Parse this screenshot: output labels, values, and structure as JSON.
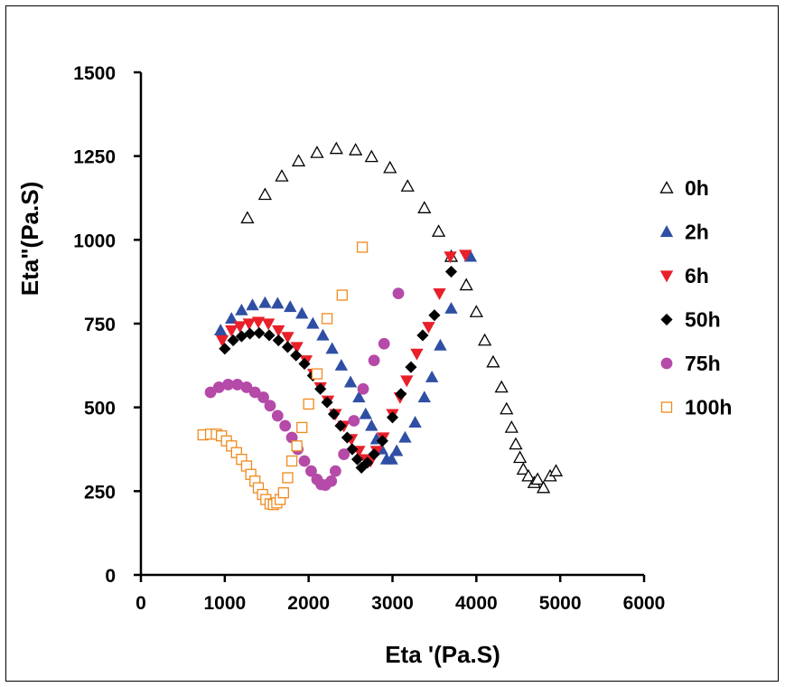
{
  "chart_data": {
    "type": "scatter",
    "xlabel": "Eta '(Pa.S)",
    "ylabel": "Eta\"(Pa.S)",
    "xlim": [
      0,
      6000
    ],
    "ylim": [
      0,
      1500
    ],
    "xticks": [
      0,
      1000,
      2000,
      3000,
      4000,
      5000,
      6000
    ],
    "yticks": [
      0,
      250,
      500,
      750,
      1000,
      1250,
      1500
    ],
    "grid": false,
    "legend_position": "right",
    "series": [
      {
        "name": "0h",
        "marker": "triangle-open",
        "color": "#000000",
        "points": [
          [
            1270,
            1065
          ],
          [
            1480,
            1135
          ],
          [
            1680,
            1190
          ],
          [
            1880,
            1235
          ],
          [
            2100,
            1260
          ],
          [
            2330,
            1272
          ],
          [
            2560,
            1268
          ],
          [
            2750,
            1248
          ],
          [
            2970,
            1215
          ],
          [
            3180,
            1160
          ],
          [
            3380,
            1095
          ],
          [
            3550,
            1025
          ],
          [
            3700,
            950
          ],
          [
            3880,
            865
          ],
          [
            4000,
            785
          ],
          [
            4100,
            700
          ],
          [
            4200,
            635
          ],
          [
            4300,
            560
          ],
          [
            4360,
            495
          ],
          [
            4420,
            440
          ],
          [
            4470,
            390
          ],
          [
            4520,
            350
          ],
          [
            4560,
            315
          ],
          [
            4620,
            295
          ],
          [
            4690,
            275
          ],
          [
            4730,
            285
          ],
          [
            4800,
            260
          ],
          [
            4880,
            295
          ],
          [
            4950,
            310
          ]
        ]
      },
      {
        "name": "2h",
        "marker": "triangle-filled",
        "color": "#2e4fa3",
        "points": [
          [
            950,
            730
          ],
          [
            1080,
            765
          ],
          [
            1200,
            790
          ],
          [
            1330,
            805
          ],
          [
            1480,
            812
          ],
          [
            1630,
            810
          ],
          [
            1780,
            800
          ],
          [
            1920,
            780
          ],
          [
            2050,
            750
          ],
          [
            2170,
            715
          ],
          [
            2280,
            675
          ],
          [
            2390,
            625
          ],
          [
            2500,
            575
          ],
          [
            2600,
            530
          ],
          [
            2680,
            480
          ],
          [
            2750,
            445
          ],
          [
            2810,
            405
          ],
          [
            2870,
            375
          ],
          [
            2930,
            345
          ],
          [
            2990,
            345
          ],
          [
            3050,
            370
          ],
          [
            3150,
            410
          ],
          [
            3270,
            455
          ],
          [
            3380,
            530
          ],
          [
            3470,
            590
          ],
          [
            3570,
            685
          ],
          [
            3700,
            795
          ],
          [
            3930,
            950
          ]
        ]
      },
      {
        "name": "6h",
        "marker": "triangle-down-filled",
        "color": "#e8202a",
        "points": [
          [
            970,
            700
          ],
          [
            1080,
            730
          ],
          [
            1180,
            742
          ],
          [
            1290,
            750
          ],
          [
            1400,
            755
          ],
          [
            1520,
            750
          ],
          [
            1640,
            730
          ],
          [
            1750,
            710
          ],
          [
            1860,
            680
          ],
          [
            1970,
            640
          ],
          [
            2060,
            600
          ],
          [
            2140,
            560
          ],
          [
            2230,
            520
          ],
          [
            2320,
            480
          ],
          [
            2420,
            445
          ],
          [
            2510,
            405
          ],
          [
            2600,
            370
          ],
          [
            2680,
            345
          ],
          [
            2740,
            340
          ],
          [
            2810,
            370
          ],
          [
            2890,
            410
          ],
          [
            3000,
            480
          ],
          [
            3090,
            530
          ],
          [
            3170,
            580
          ],
          [
            3290,
            660
          ],
          [
            3430,
            740
          ],
          [
            3560,
            840
          ],
          [
            3690,
            950
          ],
          [
            3870,
            955
          ]
        ]
      },
      {
        "name": "50h",
        "marker": "diamond-filled",
        "color": "#000000",
        "points": [
          [
            1000,
            675
          ],
          [
            1100,
            700
          ],
          [
            1200,
            712
          ],
          [
            1300,
            720
          ],
          [
            1410,
            722
          ],
          [
            1530,
            715
          ],
          [
            1640,
            700
          ],
          [
            1750,
            680
          ],
          [
            1850,
            655
          ],
          [
            1950,
            630
          ],
          [
            2050,
            595
          ],
          [
            2140,
            555
          ],
          [
            2220,
            515
          ],
          [
            2300,
            480
          ],
          [
            2380,
            445
          ],
          [
            2460,
            410
          ],
          [
            2520,
            375
          ],
          [
            2580,
            345
          ],
          [
            2630,
            320
          ],
          [
            2700,
            335
          ],
          [
            2780,
            360
          ],
          [
            2880,
            400
          ],
          [
            3000,
            470
          ],
          [
            3100,
            540
          ],
          [
            3220,
            620
          ],
          [
            3360,
            715
          ],
          [
            3500,
            775
          ],
          [
            3700,
            905
          ]
        ]
      },
      {
        "name": "75h",
        "marker": "circle-filled",
        "color": "#b54aa8",
        "points": [
          [
            830,
            545
          ],
          [
            930,
            560
          ],
          [
            1040,
            568
          ],
          [
            1150,
            568
          ],
          [
            1260,
            560
          ],
          [
            1360,
            545
          ],
          [
            1460,
            530
          ],
          [
            1540,
            505
          ],
          [
            1630,
            475
          ],
          [
            1720,
            445
          ],
          [
            1800,
            410
          ],
          [
            1870,
            375
          ],
          [
            1950,
            340
          ],
          [
            2030,
            310
          ],
          [
            2100,
            285
          ],
          [
            2150,
            270
          ],
          [
            2200,
            268
          ],
          [
            2270,
            280
          ],
          [
            2320,
            310
          ],
          [
            2420,
            360
          ],
          [
            2540,
            460
          ],
          [
            2650,
            555
          ],
          [
            2780,
            640
          ],
          [
            2900,
            690
          ],
          [
            3070,
            840
          ]
        ]
      },
      {
        "name": "100h",
        "marker": "square-open",
        "color": "#f08a1e",
        "points": [
          [
            740,
            418
          ],
          [
            830,
            420
          ],
          [
            900,
            420
          ],
          [
            960,
            415
          ],
          [
            1020,
            400
          ],
          [
            1080,
            385
          ],
          [
            1140,
            365
          ],
          [
            1200,
            345
          ],
          [
            1260,
            325
          ],
          [
            1310,
            300
          ],
          [
            1360,
            280
          ],
          [
            1400,
            260
          ],
          [
            1450,
            240
          ],
          [
            1490,
            225
          ],
          [
            1540,
            212
          ],
          [
            1580,
            210
          ],
          [
            1620,
            215
          ],
          [
            1660,
            225
          ],
          [
            1700,
            245
          ],
          [
            1750,
            290
          ],
          [
            1800,
            340
          ],
          [
            1860,
            385
          ],
          [
            1920,
            440
          ],
          [
            2000,
            510
          ],
          [
            2100,
            600
          ],
          [
            2220,
            765
          ],
          [
            2400,
            835
          ],
          [
            2640,
            978
          ]
        ]
      }
    ]
  }
}
